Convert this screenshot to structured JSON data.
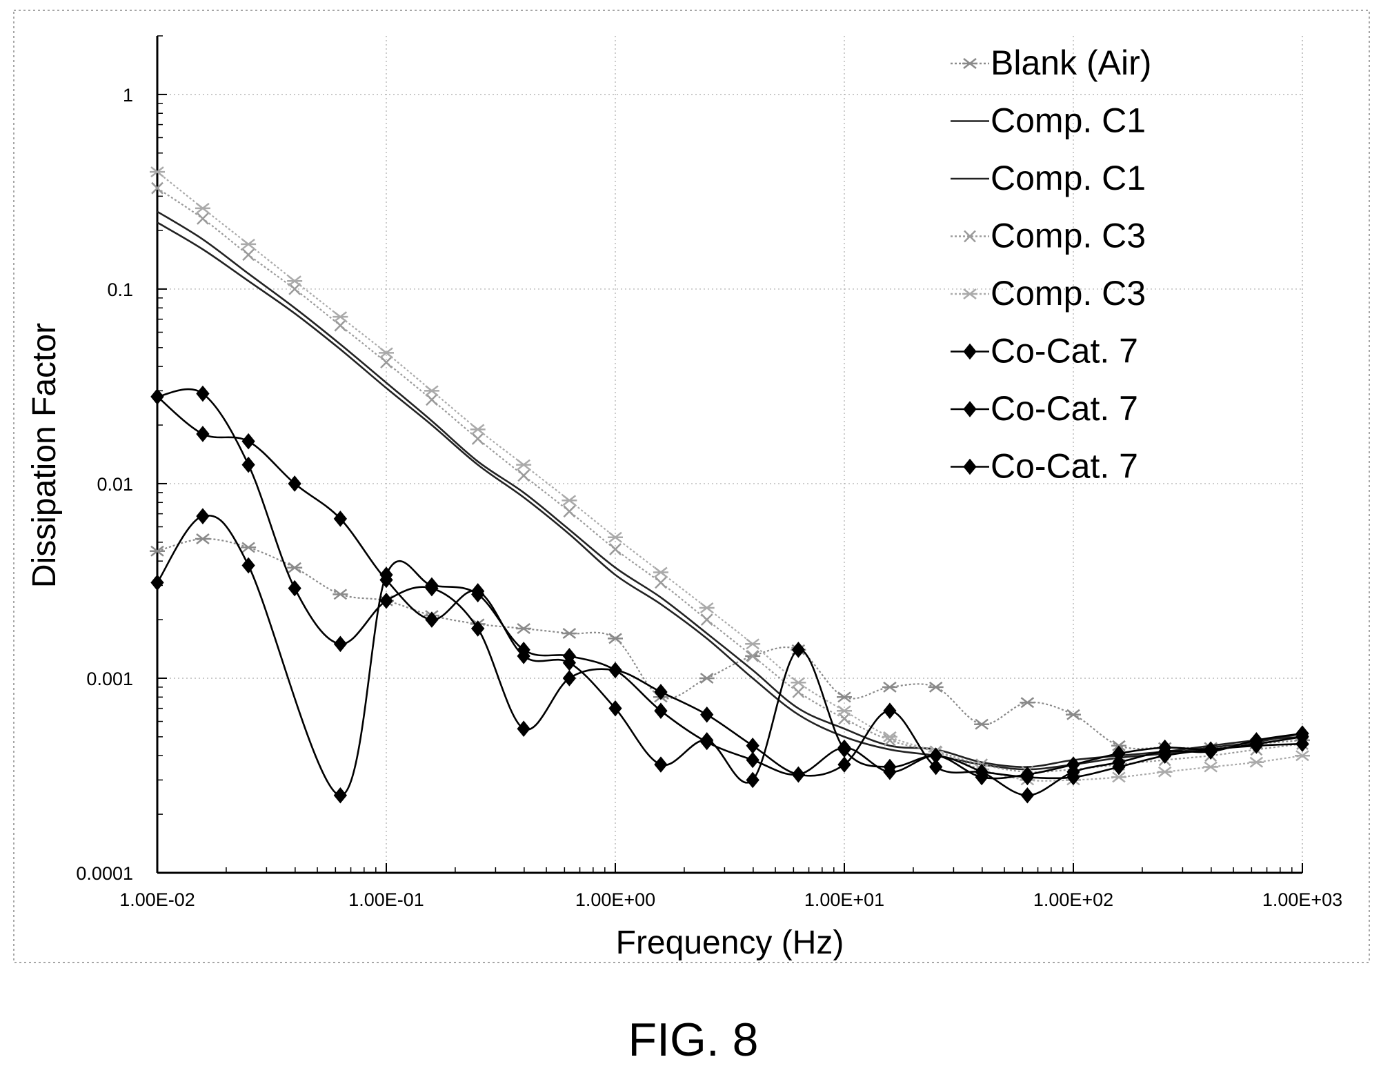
{
  "chart_data": {
    "type": "line",
    "xlabel": "Frequency (Hz)",
    "ylabel": "Dissipation Factor",
    "x_scale": "log",
    "y_scale": "log",
    "xlim": [
      0.01,
      1000
    ],
    "ylim": [
      0.0001,
      2
    ],
    "x_tick_labels": [
      "1.00E-02",
      "1.00E-01",
      "1.00E+00",
      "1.00E+01",
      "1.00E+02",
      "1.00E+03"
    ],
    "y_tick_labels": [
      "0.0001",
      "0.001",
      "0.01",
      "0.1",
      "1"
    ],
    "grid": true,
    "legend_position": "top-right",
    "caption": "FIG. 8",
    "series": [
      {
        "name": "Blank (Air)",
        "color": "#8a8a8a",
        "marker": "star",
        "line": "dotted",
        "points": [
          [
            0.01,
            0.0045
          ],
          [
            0.0158,
            0.0052
          ],
          [
            0.025,
            0.0047
          ],
          [
            0.0398,
            0.0037
          ],
          [
            0.063,
            0.0027
          ],
          [
            0.1,
            0.0025
          ],
          [
            0.158,
            0.0021
          ],
          [
            0.251,
            0.0019
          ],
          [
            0.398,
            0.0018
          ],
          [
            0.63,
            0.0017
          ],
          [
            1.0,
            0.0016
          ],
          [
            1.58,
            0.0008
          ],
          [
            2.51,
            0.001
          ],
          [
            3.98,
            0.0013
          ],
          [
            6.3,
            0.0014
          ],
          [
            10.0,
            0.0008
          ],
          [
            15.8,
            0.0009
          ],
          [
            25.1,
            0.0009
          ],
          [
            39.8,
            0.00058
          ],
          [
            63,
            0.00075
          ],
          [
            100,
            0.00065
          ],
          [
            158,
            0.00045
          ],
          [
            251,
            0.00044
          ],
          [
            398,
            0.00044
          ],
          [
            630,
            0.00046
          ],
          [
            1000,
            0.00048
          ]
        ]
      },
      {
        "name": "Comp. C1",
        "color": "#222222",
        "marker": "none",
        "line": "solid",
        "points": [
          [
            0.01,
            0.25
          ],
          [
            0.0158,
            0.18
          ],
          [
            0.025,
            0.12
          ],
          [
            0.0398,
            0.08
          ],
          [
            0.063,
            0.052
          ],
          [
            0.1,
            0.033
          ],
          [
            0.158,
            0.021
          ],
          [
            0.251,
            0.013
          ],
          [
            0.398,
            0.009
          ],
          [
            0.63,
            0.0058
          ],
          [
            1.0,
            0.0037
          ],
          [
            1.58,
            0.0026
          ],
          [
            2.51,
            0.0017
          ],
          [
            3.98,
            0.0011
          ],
          [
            6.3,
            0.0007
          ],
          [
            10.0,
            0.00055
          ],
          [
            15.8,
            0.00045
          ],
          [
            25.1,
            0.00043
          ],
          [
            39.8,
            0.00037
          ],
          [
            63,
            0.00035
          ],
          [
            100,
            0.00038
          ],
          [
            158,
            0.0004
          ],
          [
            251,
            0.00042
          ],
          [
            398,
            0.00045
          ],
          [
            630,
            0.00048
          ],
          [
            1000,
            0.0005
          ]
        ]
      },
      {
        "name": "Comp. C1",
        "color": "#222222",
        "marker": "none",
        "line": "solid",
        "points": [
          [
            0.01,
            0.22
          ],
          [
            0.0158,
            0.16
          ],
          [
            0.025,
            0.11
          ],
          [
            0.0398,
            0.075
          ],
          [
            0.063,
            0.049
          ],
          [
            0.1,
            0.031
          ],
          [
            0.158,
            0.02
          ],
          [
            0.251,
            0.0125
          ],
          [
            0.398,
            0.0085
          ],
          [
            0.63,
            0.0055
          ],
          [
            1.0,
            0.0034
          ],
          [
            1.58,
            0.0024
          ],
          [
            2.51,
            0.0016
          ],
          [
            3.98,
            0.001
          ],
          [
            6.3,
            0.00065
          ],
          [
            10.0,
            0.0005
          ],
          [
            15.8,
            0.00043
          ],
          [
            25.1,
            0.0004
          ],
          [
            39.8,
            0.00036
          ],
          [
            63,
            0.00034
          ],
          [
            100,
            0.00036
          ],
          [
            158,
            0.00039
          ],
          [
            251,
            0.00041
          ],
          [
            398,
            0.00044
          ],
          [
            630,
            0.00047
          ],
          [
            1000,
            0.00052
          ]
        ]
      },
      {
        "name": "Comp. C3",
        "color": "#9a9a9a",
        "marker": "x",
        "line": "dotted",
        "points": [
          [
            0.01,
            0.33
          ],
          [
            0.0158,
            0.23
          ],
          [
            0.025,
            0.15
          ],
          [
            0.0398,
            0.1
          ],
          [
            0.063,
            0.065
          ],
          [
            0.1,
            0.042
          ],
          [
            0.158,
            0.027
          ],
          [
            0.251,
            0.017
          ],
          [
            0.398,
            0.011
          ],
          [
            0.63,
            0.0072
          ],
          [
            1.0,
            0.0046
          ],
          [
            1.58,
            0.0031
          ],
          [
            2.51,
            0.002
          ],
          [
            3.98,
            0.0013
          ],
          [
            6.3,
            0.00085
          ],
          [
            10.0,
            0.00062
          ],
          [
            15.8,
            0.00048
          ],
          [
            25.1,
            0.00042
          ],
          [
            39.8,
            0.00036
          ],
          [
            63,
            0.00033
          ],
          [
            100,
            0.00034
          ],
          [
            158,
            0.00036
          ],
          [
            251,
            0.00038
          ],
          [
            398,
            0.0004
          ],
          [
            630,
            0.00043
          ],
          [
            1000,
            0.00046
          ]
        ]
      },
      {
        "name": "Comp. C3",
        "color": "#aaaaaa",
        "marker": "star",
        "line": "dotted",
        "points": [
          [
            0.01,
            0.4
          ],
          [
            0.0158,
            0.26
          ],
          [
            0.025,
            0.17
          ],
          [
            0.0398,
            0.11
          ],
          [
            0.063,
            0.072
          ],
          [
            0.1,
            0.047
          ],
          [
            0.158,
            0.03
          ],
          [
            0.251,
            0.019
          ],
          [
            0.398,
            0.0125
          ],
          [
            0.63,
            0.0082
          ],
          [
            1.0,
            0.0053
          ],
          [
            1.58,
            0.0035
          ],
          [
            2.51,
            0.0023
          ],
          [
            3.98,
            0.0015
          ],
          [
            6.3,
            0.00095
          ],
          [
            10.0,
            0.00068
          ],
          [
            15.8,
            0.0005
          ],
          [
            25.1,
            0.00042
          ],
          [
            39.8,
            0.00034
          ],
          [
            63,
            0.0003
          ],
          [
            100,
            0.0003
          ],
          [
            158,
            0.00031
          ],
          [
            251,
            0.00033
          ],
          [
            398,
            0.00035
          ],
          [
            630,
            0.00037
          ],
          [
            1000,
            0.0004
          ]
        ]
      },
      {
        "name": "Co-Cat. 7",
        "color": "#000000",
        "marker": "diamond",
        "line": "solid",
        "points": [
          [
            0.01,
            0.028
          ],
          [
            0.0158,
            0.029
          ],
          [
            0.025,
            0.0125
          ],
          [
            0.0398,
            0.0029
          ],
          [
            0.063,
            0.0015
          ],
          [
            0.1,
            0.0025
          ],
          [
            0.158,
            0.0029
          ],
          [
            0.251,
            0.0018
          ],
          [
            0.398,
            0.00055
          ],
          [
            0.63,
            0.001
          ],
          [
            1.0,
            0.0011
          ],
          [
            1.58,
            0.00085
          ],
          [
            2.51,
            0.00065
          ],
          [
            3.98,
            0.00045
          ],
          [
            6.3,
            0.00032
          ],
          [
            10.0,
            0.00036
          ],
          [
            15.8,
            0.00068
          ],
          [
            25.1,
            0.00035
          ],
          [
            39.8,
            0.00033
          ],
          [
            63,
            0.00031
          ],
          [
            100,
            0.00031
          ],
          [
            158,
            0.00035
          ],
          [
            251,
            0.0004
          ],
          [
            398,
            0.00043
          ],
          [
            630,
            0.00045
          ],
          [
            1000,
            0.00046
          ]
        ]
      },
      {
        "name": "Co-Cat. 7",
        "color": "#000000",
        "marker": "diamond",
        "line": "solid",
        "points": [
          [
            0.01,
            0.028
          ],
          [
            0.0158,
            0.018
          ],
          [
            0.025,
            0.0165
          ],
          [
            0.0398,
            0.01
          ],
          [
            0.063,
            0.0066
          ],
          [
            0.1,
            0.0032
          ],
          [
            0.158,
            0.002
          ],
          [
            0.251,
            0.0028
          ],
          [
            0.398,
            0.0013
          ],
          [
            0.63,
            0.0012
          ],
          [
            1.0,
            0.0007
          ],
          [
            1.58,
            0.00036
          ],
          [
            2.51,
            0.00048
          ],
          [
            3.98,
            0.0003
          ],
          [
            6.3,
            0.0014
          ],
          [
            10.0,
            0.00043
          ],
          [
            15.8,
            0.00035
          ],
          [
            25.1,
            0.0004
          ],
          [
            39.8,
            0.00033
          ],
          [
            63,
            0.00025
          ],
          [
            100,
            0.00033
          ],
          [
            158,
            0.00037
          ],
          [
            251,
            0.00042
          ],
          [
            398,
            0.00042
          ],
          [
            630,
            0.00048
          ],
          [
            1000,
            0.00052
          ]
        ]
      },
      {
        "name": "Co-Cat. 7",
        "color": "#000000",
        "marker": "diamond",
        "line": "solid",
        "points": [
          [
            0.01,
            0.0031
          ],
          [
            0.0158,
            0.0068
          ],
          [
            0.025,
            0.0038
          ],
          [
            0.063,
            0.00025
          ],
          [
            0.1,
            0.0034
          ],
          [
            0.158,
            0.003
          ],
          [
            0.251,
            0.0027
          ],
          [
            0.398,
            0.0014
          ],
          [
            0.63,
            0.0013
          ],
          [
            1.0,
            0.0011
          ],
          [
            1.58,
            0.00068
          ],
          [
            2.51,
            0.00047
          ],
          [
            3.98,
            0.00038
          ],
          [
            6.3,
            0.00032
          ],
          [
            10.0,
            0.00044
          ],
          [
            15.8,
            0.00033
          ],
          [
            25.1,
            0.0004
          ],
          [
            39.8,
            0.00031
          ],
          [
            63,
            0.00032
          ],
          [
            100,
            0.00036
          ],
          [
            158,
            0.00041
          ],
          [
            251,
            0.00044
          ],
          [
            398,
            0.00043
          ],
          [
            630,
            0.00046
          ],
          [
            1000,
            0.0005
          ]
        ]
      }
    ]
  }
}
